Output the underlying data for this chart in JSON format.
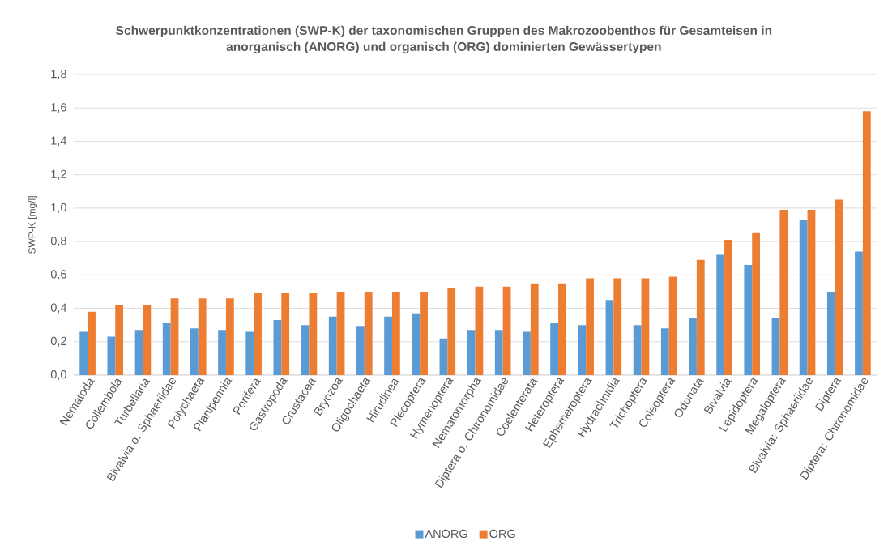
{
  "chart_data": {
    "type": "bar",
    "title": "Schwerpunktkonzentrationen (SWP-K) der taxonomischen Gruppen des Makrozoobenthos für Gesamteisen in anorganisch (ANORG) und organisch (ORG) dominierten Gewässertypen",
    "ylabel": "SWP-K [mg/l]",
    "categories": [
      "Nematoda",
      "Collembola",
      "Turbellaria",
      "Bivalvia o. Sphaeriidae",
      "Polychaeta",
      "Planipennia",
      "Porifera",
      "Gastropoda",
      "Crustacea",
      "Bryozoa",
      "Oligochaeta",
      "Hirudinea",
      "Plecoptera",
      "Hymenoptera",
      "Nematomorpha",
      "Diptera o. Chironomidae",
      "Coelenterata",
      "Heteroptera",
      "Ephemeroptera",
      "Hydrachnidia",
      "Trichoptera",
      "Coleoptera",
      "Odonata",
      "Bivalvia",
      "Lepidoptera",
      "Megaloptera",
      "Bivalvia: Sphaeriidae",
      "Diptera",
      "Diptera: Chironomidae"
    ],
    "series": [
      {
        "name": "ANORG",
        "color": "#5b9bd5",
        "values": [
          0.26,
          0.23,
          0.27,
          0.31,
          0.28,
          0.27,
          0.26,
          0.33,
          0.3,
          0.35,
          0.29,
          0.35,
          0.37,
          0.22,
          0.27,
          0.27,
          0.26,
          0.31,
          0.3,
          0.45,
          0.3,
          0.28,
          0.34,
          0.72,
          0.66,
          0.34,
          0.93,
          0.5,
          0.74
        ]
      },
      {
        "name": "ORG",
        "color": "#ed7d31",
        "values": [
          0.38,
          0.42,
          0.42,
          0.46,
          0.46,
          0.46,
          0.49,
          0.49,
          0.49,
          0.5,
          0.5,
          0.5,
          0.5,
          0.52,
          0.53,
          0.53,
          0.55,
          0.55,
          0.58,
          0.58,
          0.58,
          0.59,
          0.69,
          0.81,
          0.85,
          0.99,
          0.99,
          1.05,
          1.58
        ]
      }
    ],
    "ylim": [
      0,
      1.8
    ],
    "yticks": [
      {
        "value": 0,
        "label": "0,0"
      },
      {
        "value": 0.2,
        "label": "0,2"
      },
      {
        "value": 0.4,
        "label": "0,4"
      },
      {
        "value": 0.6,
        "label": "0,6"
      },
      {
        "value": 0.8,
        "label": "0,8"
      },
      {
        "value": 1.0,
        "label": "1,0"
      },
      {
        "value": 1.2,
        "label": "1,2"
      },
      {
        "value": 1.4,
        "label": "1,4"
      },
      {
        "value": 1.6,
        "label": "1,6"
      },
      {
        "value": 1.8,
        "label": "1,8"
      }
    ],
    "grid": "y",
    "legend": "bottom"
  }
}
